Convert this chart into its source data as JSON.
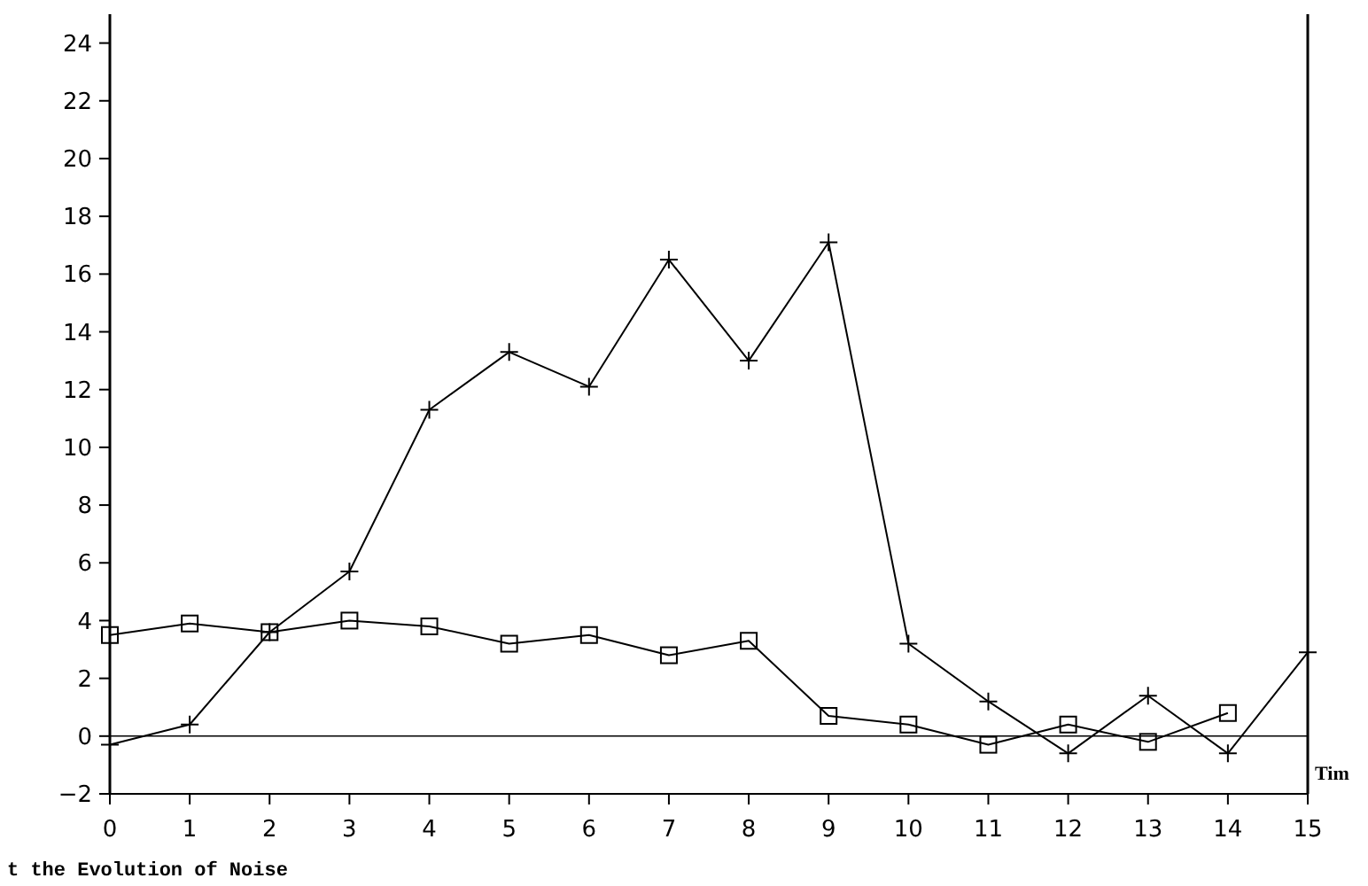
{
  "chart_data": {
    "type": "line",
    "xlabel": "Tim",
    "x": [
      0,
      1,
      2,
      3,
      4,
      5,
      6,
      7,
      8,
      9,
      10,
      11,
      12,
      13,
      14,
      15
    ],
    "series": [
      {
        "color": "#000000",
        "marker": "cross",
        "values": [
          -0.3,
          0.4,
          3.6,
          5.7,
          11.3,
          13.3,
          12.1,
          16.5,
          13.0,
          17.1,
          3.2,
          1.2,
          -0.6,
          1.4,
          -0.6,
          2.9
        ]
      },
      {
        "color": "#000000",
        "marker": "square",
        "values": [
          3.5,
          3.9,
          3.6,
          4.0,
          3.8,
          3.2,
          3.5,
          2.8,
          3.3,
          0.7,
          0.4,
          -0.3,
          0.4,
          -0.2,
          0.8,
          null
        ]
      }
    ],
    "xlim": [
      0,
      15
    ],
    "xticks": [
      0,
      1,
      2,
      3,
      4,
      5,
      6,
      7,
      8,
      9,
      10,
      11,
      12,
      13,
      14,
      15
    ],
    "ylim": [
      -2,
      25
    ],
    "yticks": [
      -2,
      0,
      2,
      4,
      6,
      8,
      10,
      12,
      14,
      16,
      18,
      20,
      22,
      24
    ],
    "ref_lines": [
      {
        "axis": "y",
        "value": 0,
        "color": "#000000"
      }
    ],
    "annotations": [
      "t the Evolution of Noise"
    ],
    "grid": false,
    "line_style": "solid"
  }
}
